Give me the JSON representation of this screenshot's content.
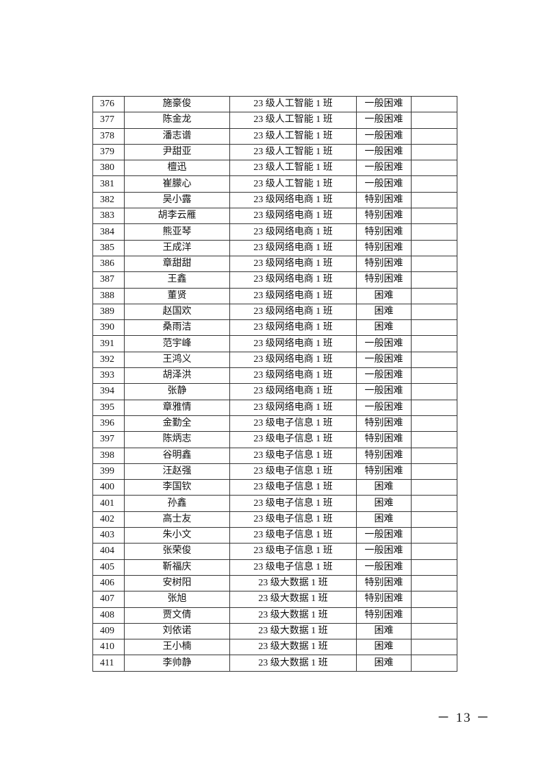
{
  "table": {
    "rows": [
      [
        "376",
        "施豪俊",
        "23 级人工智能 1 班",
        "一般困难",
        ""
      ],
      [
        "377",
        "陈金龙",
        "23 级人工智能 1 班",
        "一般困难",
        ""
      ],
      [
        "378",
        "潘志谱",
        "23 级人工智能 1 班",
        "一般困难",
        ""
      ],
      [
        "379",
        "尹甜亚",
        "23 级人工智能 1 班",
        "一般困难",
        ""
      ],
      [
        "380",
        "檀迅",
        "23 级人工智能 1 班",
        "一般困难",
        ""
      ],
      [
        "381",
        "崔朦心",
        "23 级人工智能 1 班",
        "一般困难",
        ""
      ],
      [
        "382",
        "吴小露",
        "23 级网络电商 1 班",
        "特别困难",
        ""
      ],
      [
        "383",
        "胡李云雁",
        "23 级网络电商 1 班",
        "特别困难",
        ""
      ],
      [
        "384",
        "熊亚琴",
        "23 级网络电商 1 班",
        "特别困难",
        ""
      ],
      [
        "385",
        "王成洋",
        "23 级网络电商 1 班",
        "特别困难",
        ""
      ],
      [
        "386",
        "章甜甜",
        "23 级网络电商 1 班",
        "特别困难",
        ""
      ],
      [
        "387",
        "王鑫",
        "23 级网络电商 1 班",
        "特别困难",
        ""
      ],
      [
        "388",
        "董贤",
        "23 级网络电商 1 班",
        "困难",
        ""
      ],
      [
        "389",
        "赵国欢",
        "23 级网络电商 1 班",
        "困难",
        ""
      ],
      [
        "390",
        "桑雨洁",
        "23 级网络电商 1 班",
        "困难",
        ""
      ],
      [
        "391",
        "范宇峰",
        "23 级网络电商 1 班",
        "一般困难",
        ""
      ],
      [
        "392",
        "王鸿义",
        "23 级网络电商 1 班",
        "一般困难",
        ""
      ],
      [
        "393",
        "胡泽洪",
        "23 级网络电商 1 班",
        "一般困难",
        ""
      ],
      [
        "394",
        "张静",
        "23 级网络电商 1 班",
        "一般困难",
        ""
      ],
      [
        "395",
        "章雅情",
        "23 级网络电商 1 班",
        "一般困难",
        ""
      ],
      [
        "396",
        "金勤全",
        "23 级电子信息 1 班",
        "特别困难",
        ""
      ],
      [
        "397",
        "陈炳志",
        "23 级电子信息 1 班",
        "特别困难",
        ""
      ],
      [
        "398",
        "谷明鑫",
        "23 级电子信息 1 班",
        "特别困难",
        ""
      ],
      [
        "399",
        "汪赵强",
        "23 级电子信息 1 班",
        "特别困难",
        ""
      ],
      [
        "400",
        "李国钦",
        "23 级电子信息 1 班",
        "困难",
        ""
      ],
      [
        "401",
        "孙鑫",
        "23 级电子信息 1 班",
        "困难",
        ""
      ],
      [
        "402",
        "高士友",
        "23 级电子信息 1 班",
        "困难",
        ""
      ],
      [
        "403",
        "朱小文",
        "23 级电子信息 1 班",
        "一般困难",
        ""
      ],
      [
        "404",
        "张荣俊",
        "23 级电子信息 1 班",
        "一般困难",
        ""
      ],
      [
        "405",
        "靳福庆",
        "23 级电子信息 1 班",
        "一般困难",
        ""
      ],
      [
        "406",
        "安树阳",
        "23 级大数据 1 班",
        "特别困难",
        ""
      ],
      [
        "407",
        "张旭",
        "23 级大数据 1 班",
        "特别困难",
        ""
      ],
      [
        "408",
        "贾文倩",
        "23 级大数据 1 班",
        "特别困难",
        ""
      ],
      [
        "409",
        "刘依诺",
        "23 级大数据 1 班",
        "困难",
        ""
      ],
      [
        "410",
        "王小楠",
        "23 级大数据 1 班",
        "困难",
        ""
      ],
      [
        "411",
        "李帅静",
        "23 级大数据 1 班",
        "困难",
        ""
      ]
    ]
  },
  "footer": {
    "page_number": "－ 13 －"
  }
}
